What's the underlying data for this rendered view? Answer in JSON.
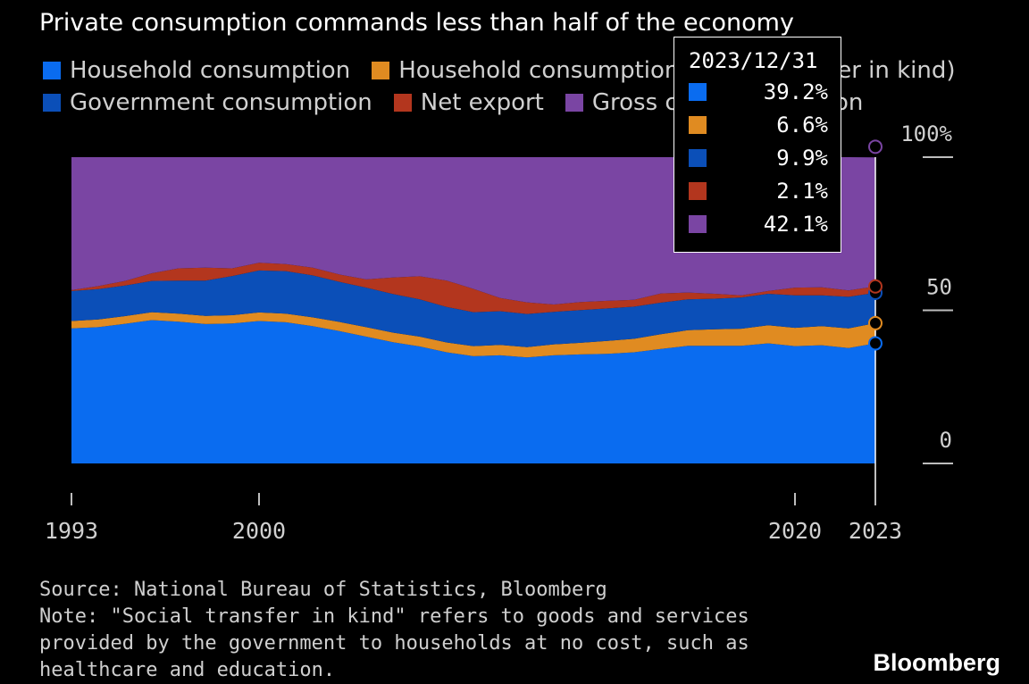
{
  "chart_data": {
    "type": "area",
    "stacked": true,
    "title": "Private consumption commands less than half of the economy",
    "x": [
      1993,
      1994,
      1995,
      1996,
      1997,
      1998,
      1999,
      2000,
      2001,
      2002,
      2003,
      2004,
      2005,
      2006,
      2007,
      2008,
      2009,
      2010,
      2011,
      2012,
      2013,
      2014,
      2015,
      2016,
      2017,
      2018,
      2019,
      2020,
      2021,
      2022,
      2023
    ],
    "series": [
      {
        "name": "Household consumption",
        "color": "#0a6cf0",
        "values": [
          44.1,
          44.5,
          45.6,
          46.8,
          46.3,
          45.5,
          45.7,
          46.5,
          46.1,
          44.8,
          43.2,
          41.4,
          39.6,
          38.2,
          36.3,
          35.0,
          35.3,
          34.6,
          35.3,
          35.6,
          35.8,
          36.3,
          37.4,
          38.4,
          38.4,
          38.4,
          39.2,
          38.3,
          38.6,
          37.7,
          39.2
        ]
      },
      {
        "name": "Household consumption (social transfer in kind)",
        "color": "#e08b21",
        "values": [
          2.4,
          2.5,
          2.5,
          2.6,
          2.6,
          2.7,
          2.7,
          2.8,
          2.8,
          2.9,
          3.0,
          3.1,
          3.1,
          3.2,
          3.2,
          3.3,
          3.4,
          3.4,
          3.6,
          3.8,
          4.2,
          4.4,
          4.8,
          5.1,
          5.4,
          5.6,
          5.9,
          6.0,
          6.2,
          6.4,
          6.6
        ]
      },
      {
        "name": "Government consumption",
        "color": "#0b4fb8",
        "values": [
          9.8,
          9.9,
          10.0,
          10.2,
          10.8,
          11.5,
          12.8,
          13.7,
          13.9,
          13.7,
          13.1,
          12.9,
          12.6,
          12.2,
          11.6,
          11.1,
          11.0,
          10.8,
          10.6,
          10.7,
          10.6,
          10.5,
          10.3,
          10.1,
          10.0,
          10.2,
          10.3,
          10.6,
          10.1,
          10.3,
          9.9
        ]
      },
      {
        "name": "Net export",
        "color": "#b3361e",
        "values": [
          0.3,
          1.0,
          1.5,
          2.5,
          4.0,
          4.2,
          2.5,
          2.5,
          2.3,
          2.5,
          2.4,
          2.7,
          5.4,
          7.5,
          8.6,
          7.6,
          4.3,
          3.8,
          2.4,
          2.6,
          2.5,
          2.2,
          3.0,
          2.2,
          1.6,
          0.7,
          0.9,
          2.5,
          2.6,
          2.1,
          2.1
        ]
      },
      {
        "name": "Gross capital formation",
        "color": "#7a45a3",
        "values": [
          43.4,
          42.1,
          40.4,
          37.9,
          36.3,
          36.1,
          36.3,
          34.5,
          34.9,
          36.1,
          38.3,
          39.9,
          39.3,
          38.9,
          40.3,
          43.0,
          46.0,
          47.4,
          48.1,
          47.3,
          46.9,
          46.6,
          44.5,
          44.2,
          44.6,
          45.1,
          43.7,
          42.6,
          42.5,
          43.5,
          42.1
        ]
      }
    ],
    "y_ticks": [
      "100%",
      "50",
      "0"
    ],
    "x_ticks": [
      "1993",
      "2000",
      "2020",
      "2023"
    ],
    "ylim": [
      0,
      100
    ],
    "legend_position": "top",
    "grid": false,
    "tooltip": {
      "date": "2023/12/31",
      "values": [
        "39.2%",
        "6.6%",
        "9.9%",
        "2.1%",
        "42.1%"
      ]
    }
  },
  "footer": {
    "source": "Source: National Bureau of Statistics, Bloomberg",
    "note_lines": [
      "Note: \"Social transfer in kind\" refers to goods and services",
      "provided by the government to households at no cost, such as",
      "healthcare and education."
    ],
    "brand": "Bloomberg"
  }
}
